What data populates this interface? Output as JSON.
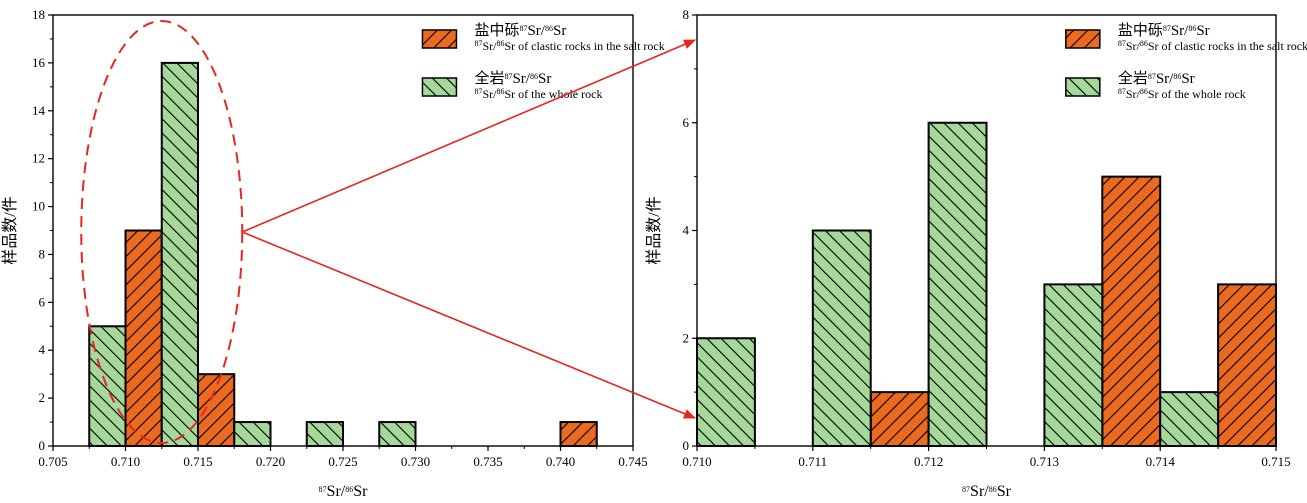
{
  "colors": {
    "salt": "#ec6a1f",
    "whole": "#a6d89a",
    "annotation": "#e8251f",
    "hatch": "#000000"
  },
  "chart_data": [
    {
      "type": "bar",
      "xlabel": "⁸⁷Sr/⁸⁶Sr",
      "ylabel": "样品数/件",
      "xlim": [
        0.705,
        0.745
      ],
      "ylim": [
        0,
        18
      ],
      "xticks": [
        "0.705",
        "0.710",
        "0.715",
        "0.720",
        "0.725",
        "0.730",
        "0.735",
        "0.740",
        "0.745"
      ],
      "yticks": [
        "0",
        "2",
        "4",
        "6",
        "8",
        "10",
        "12",
        "14",
        "16",
        "18"
      ],
      "bin_width": 0.0025,
      "legend_position": "top-right",
      "series": [
        {
          "name": "盐中砾⁸⁷Sr/⁸⁶Sr",
          "name_en": "⁸⁷Sr/⁸⁶Sr of clastic rocks in the salt rock",
          "color_key": "salt",
          "bins": [
            {
              "x0": 0.71,
              "x1": 0.7125,
              "count": 9
            },
            {
              "x0": 0.715,
              "x1": 0.7175,
              "count": 3
            },
            {
              "x0": 0.74,
              "x1": 0.7425,
              "count": 1
            }
          ]
        },
        {
          "name": "全岩⁸⁷Sr/⁸⁶Sr",
          "name_en": "⁸⁷Sr/⁸⁶Sr of the whole rock",
          "color_key": "whole",
          "bins": [
            {
              "x0": 0.7075,
              "x1": 0.71,
              "count": 5
            },
            {
              "x0": 0.7125,
              "x1": 0.715,
              "count": 16
            },
            {
              "x0": 0.7175,
              "x1": 0.72,
              "count": 1
            },
            {
              "x0": 0.7225,
              "x1": 0.725,
              "count": 1
            },
            {
              "x0": 0.7275,
              "x1": 0.73,
              "count": 1
            }
          ]
        }
      ]
    },
    {
      "type": "bar",
      "xlabel": "⁸⁷Sr/⁸⁶Sr",
      "ylabel": "样品数/件",
      "xlim": [
        0.71,
        0.715
      ],
      "ylim": [
        0,
        8
      ],
      "xticks": [
        "0.710",
        "0.711",
        "0.712",
        "0.713",
        "0.714",
        "0.715"
      ],
      "yticks": [
        "0",
        "2",
        "4",
        "6",
        "8"
      ],
      "bin_width": 0.0005,
      "legend_position": "top-right",
      "series": [
        {
          "name": "盐中砾⁸⁷Sr/⁸⁶Sr",
          "name_en": "⁸⁷Sr/⁸⁶Sr of clastic rocks in the salt rock",
          "color_key": "salt",
          "bins": [
            {
              "x0": 0.7115,
              "x1": 0.712,
              "count": 1
            },
            {
              "x0": 0.7135,
              "x1": 0.714,
              "count": 5
            },
            {
              "x0": 0.7145,
              "x1": 0.715,
              "count": 3
            }
          ]
        },
        {
          "name": "全岩⁸⁷Sr/⁸⁶Sr",
          "name_en": "⁸⁷Sr/⁸⁶Sr of the whole rock",
          "color_key": "whole",
          "bins": [
            {
              "x0": 0.71,
              "x1": 0.7105,
              "count": 2
            },
            {
              "x0": 0.711,
              "x1": 0.7115,
              "count": 4
            },
            {
              "x0": 0.712,
              "x1": 0.7125,
              "count": 6
            },
            {
              "x0": 0.713,
              "x1": 0.7135,
              "count": 3
            },
            {
              "x0": 0.714,
              "x1": 0.7145,
              "count": 1
            }
          ]
        }
      ]
    }
  ],
  "annotation": {
    "highlight_range": [
      0.7075,
      0.7175
    ],
    "description_hidden": ""
  }
}
